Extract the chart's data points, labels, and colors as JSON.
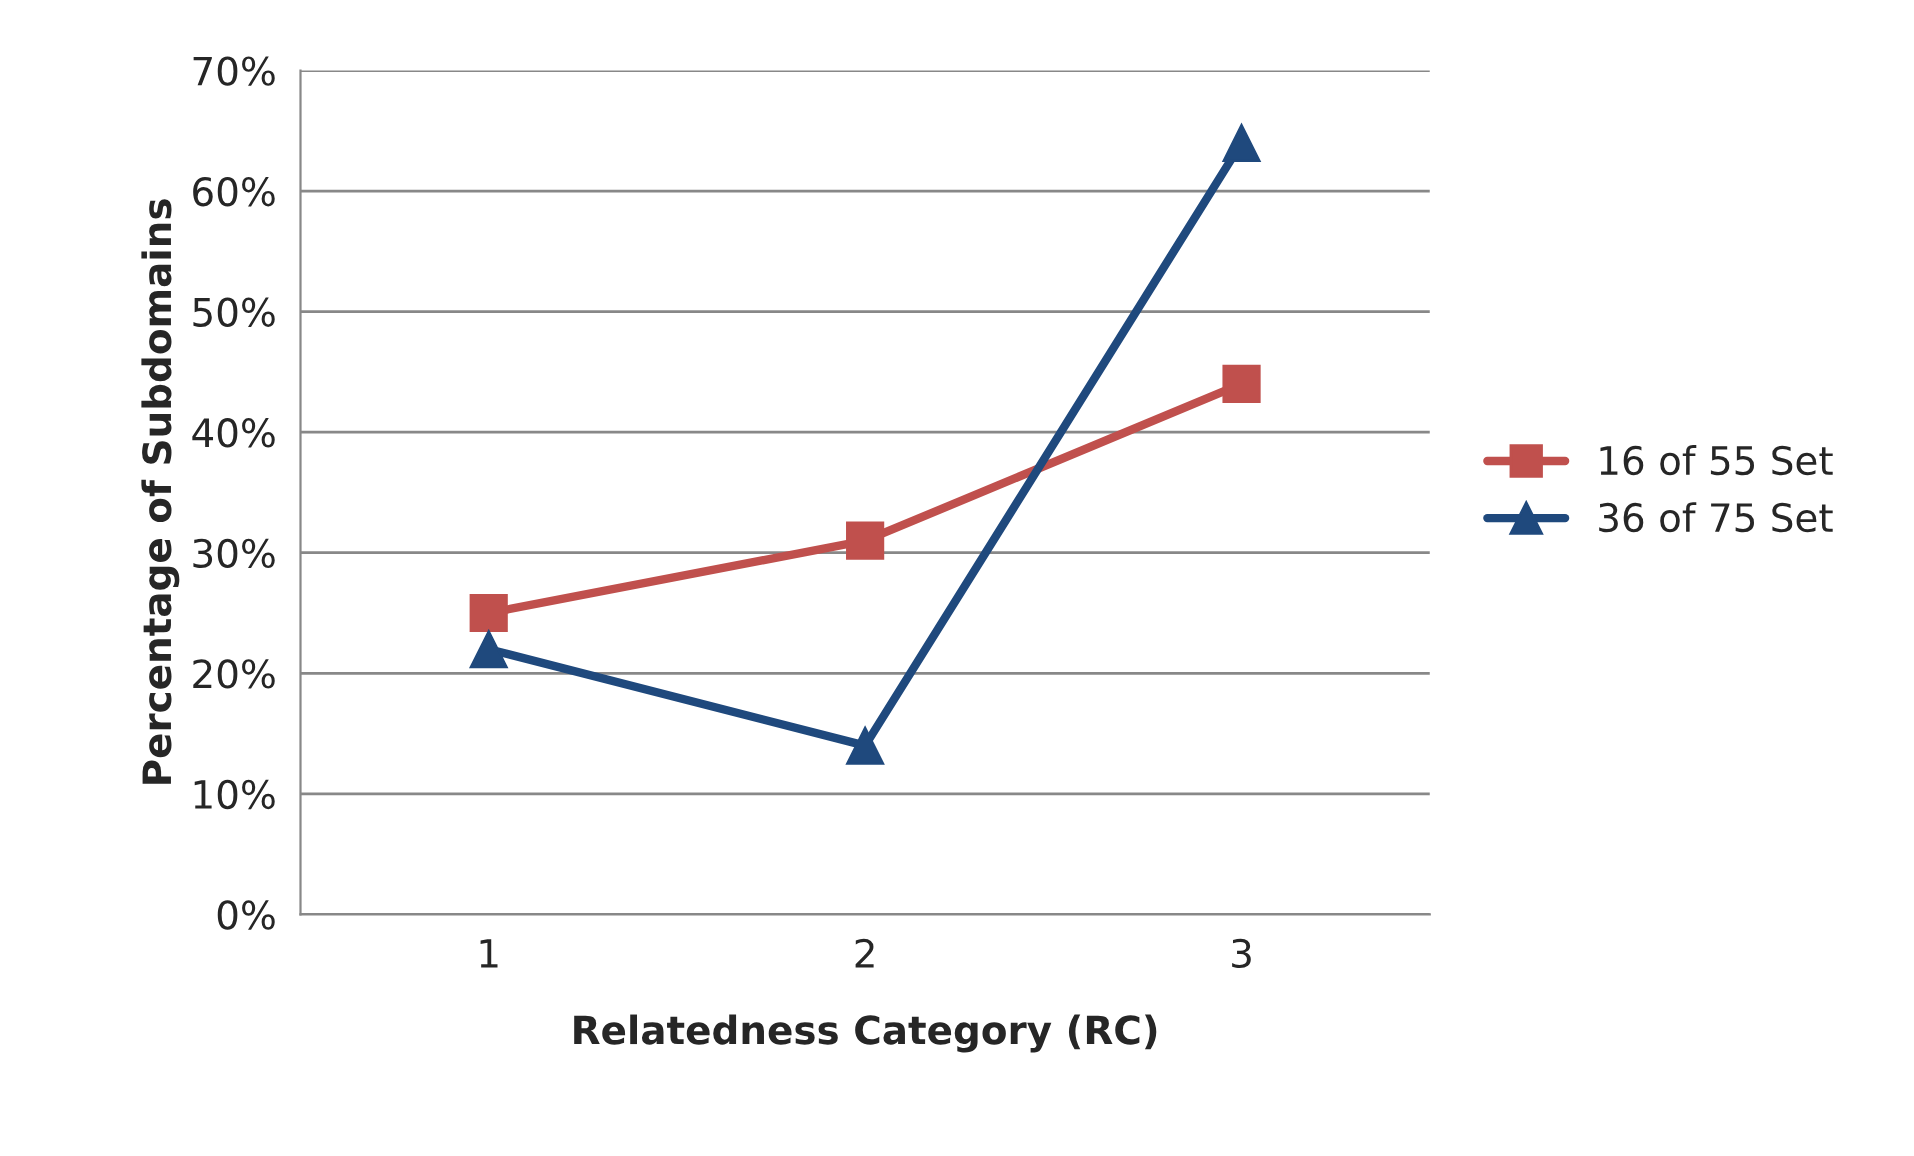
{
  "chart_data": {
    "type": "line",
    "xlabel": "Relatedness Category (RC)",
    "ylabel": "Percentage of Subdomains",
    "categories": [
      "1",
      "2",
      "3"
    ],
    "series": [
      {
        "name": "16 of 55 Set",
        "color": "#c0504d",
        "marker": "square",
        "values": [
          25,
          31,
          44
        ]
      },
      {
        "name": "36 of 75 Set",
        "color": "#1f497d",
        "marker": "triangle",
        "values": [
          22,
          14,
          64
        ]
      }
    ],
    "ylim": [
      0,
      70
    ],
    "yticks": [
      {
        "value": 0,
        "label": "0%"
      },
      {
        "value": 10,
        "label": "10%"
      },
      {
        "value": 20,
        "label": "20%"
      },
      {
        "value": 30,
        "label": "30%"
      },
      {
        "value": 40,
        "label": "40%"
      },
      {
        "value": 50,
        "label": "50%"
      },
      {
        "value": 60,
        "label": "60%"
      },
      {
        "value": 70,
        "label": "70%"
      }
    ],
    "grid": "y",
    "legend": "right",
    "line_style": "solid"
  }
}
